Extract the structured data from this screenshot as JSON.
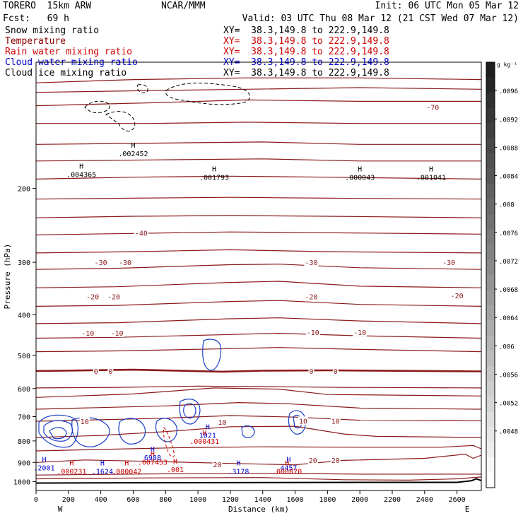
{
  "header": {
    "model": "TORERO  15km ARW",
    "center": "NCAR/MMM",
    "init": "Init: 06 UTC Mon 05 Mar 12",
    "fcst": "Fcst:   69 h",
    "valid": "Valid: 03 UTC Thu 08 Mar 12 (21 CST Wed 07 Mar 12)"
  },
  "legend": [
    {
      "name": "Snow mixing ratio",
      "xy": "XY=  38.3,149.8 to 222.9,149.8",
      "color": "#000000"
    },
    {
      "name": "Temperature",
      "xy": "XY=  38.3,149.8 to 222.9,149.8",
      "color": "#8b0000"
    },
    {
      "name": "Rain water mixing ratio",
      "xy": "XY=  38.3,149.8 to 222.9,149.8",
      "color": "#cc0000"
    },
    {
      "name": "Cloud water mixing ratio",
      "xy": "XY=  38.3,149.8 to 222.9,149.8",
      "color": "#0000cc"
    },
    {
      "name": "Cloud ice mixing ratio",
      "xy": "XY=  38.3,149.8 to 222.9,149.8",
      "color": "#000000"
    }
  ],
  "chart_data": {
    "type": "cross-section",
    "xlabel": "Distance (km)",
    "ylabel": "Pressure (hPa)",
    "xlim": [
      0,
      2750
    ],
    "ylim": [
      1050,
      100
    ],
    "x_ticks": [
      "0",
      "200",
      "400",
      "600",
      "800",
      "1000",
      "1200",
      "1400",
      "1600",
      "1800",
      "2000",
      "2200",
      "2400",
      "2600"
    ],
    "y_ticks": [
      "200",
      "300",
      "400",
      "500",
      "600",
      "700",
      "800",
      "900",
      "1000"
    ],
    "x_end_labels": {
      "left": "W",
      "right": "E"
    },
    "colorbar": {
      "unit": "g kg⁻¹",
      "ticks": [
        "0.0096",
        "0.0092",
        "0.0088",
        "0.0084",
        "0.008",
        "0.0076",
        "0.0072",
        "0.0068",
        "0.0064",
        "0.006",
        "0.0056",
        "0.0052",
        "0.0048"
      ],
      "tick_labels": [
        ".0096",
        ".0092",
        ".0088",
        ".0084",
        ".008",
        ".0076",
        ".0072",
        ".0068",
        ".0064",
        ".006",
        ".0056",
        ".0052",
        ".0048"
      ]
    },
    "temperature_isotherms": [
      {
        "label_value": "-70",
        "labels": [
          {
            "x": 2450,
            "p": 128,
            "text": "-70"
          }
        ]
      },
      {
        "label_value": "-40",
        "labels": [
          {
            "x": 650,
            "p": 255,
            "text": "-40"
          }
        ]
      },
      {
        "label_value": "-30",
        "labels": [
          {
            "x": 400,
            "p": 300,
            "text": "-30"
          },
          {
            "x": 550,
            "p": 300,
            "text": "-30"
          },
          {
            "x": 1700,
            "p": 300,
            "text": "-30"
          },
          {
            "x": 2550,
            "p": 300,
            "text": "-30"
          }
        ]
      },
      {
        "label_value": "-20",
        "labels": [
          {
            "x": 350,
            "p": 362,
            "text": "-20"
          },
          {
            "x": 480,
            "p": 362,
            "text": "-20"
          },
          {
            "x": 1700,
            "p": 362,
            "text": "-20"
          },
          {
            "x": 2600,
            "p": 360,
            "text": "-20"
          }
        ]
      },
      {
        "label_value": "-10",
        "labels": [
          {
            "x": 320,
            "p": 442,
            "text": "-10"
          },
          {
            "x": 500,
            "p": 442,
            "text": "-10"
          },
          {
            "x": 1710,
            "p": 440,
            "text": "-10"
          },
          {
            "x": 2000,
            "p": 440,
            "text": "-10"
          }
        ]
      },
      {
        "label_value": "0",
        "labels": [
          {
            "x": 370,
            "p": 545,
            "text": "0"
          },
          {
            "x": 460,
            "p": 545,
            "text": "0"
          },
          {
            "x": 1700,
            "p": 545,
            "text": "0"
          },
          {
            "x": 1850,
            "p": 545,
            "text": "0"
          }
        ]
      },
      {
        "label_value": "10",
        "labels": [
          {
            "x": 300,
            "p": 718,
            "text": "10"
          },
          {
            "x": 1150,
            "p": 720,
            "text": "10"
          },
          {
            "x": 1650,
            "p": 716,
            "text": "10"
          },
          {
            "x": 1850,
            "p": 716,
            "text": "10"
          }
        ]
      },
      {
        "label_value": "20",
        "labels": [
          {
            "x": 1120,
            "p": 910,
            "text": "20"
          },
          {
            "x": 1710,
            "p": 888,
            "text": "20"
          },
          {
            "x": 1850,
            "p": 888,
            "text": "20"
          }
        ]
      }
    ],
    "maxima_labels": [
      {
        "x": 280,
        "p": 185,
        "text": ".004365",
        "color": "#000000"
      },
      {
        "x": 600,
        "p": 165,
        "text": ".002452",
        "color": "#000000"
      },
      {
        "x": 1100,
        "p": 188,
        "text": ".001793",
        "color": "#000000"
      },
      {
        "x": 2000,
        "p": 188,
        "text": ".000043",
        "color": "#000000"
      },
      {
        "x": 2440,
        "p": 188,
        "text": ".001041",
        "color": "#000000"
      },
      {
        "x": 1060,
        "p": 775,
        "text": "1021",
        "color": "#0000cc"
      },
      {
        "x": 1040,
        "p": 800,
        "text": ".000431",
        "color": "#cc0000"
      },
      {
        "x": 720,
        "p": 875,
        "text": "6988",
        "color": "#0000cc"
      },
      {
        "x": 720,
        "p": 898,
        "text": ".007453",
        "color": "#cc0000"
      },
      {
        "x": 860,
        "p": 935,
        "text": ".001",
        "color": "#cc0000"
      },
      {
        "x": 50,
        "p": 925,
        "text": ".2001",
        "color": "#0000cc"
      },
      {
        "x": 220,
        "p": 943,
        "text": ".000231",
        "color": "#cc0000"
      },
      {
        "x": 410,
        "p": 943,
        "text": ".1624",
        "color": "#0000cc"
      },
      {
        "x": 560,
        "p": 943,
        "text": ".000042",
        "color": "#cc0000"
      },
      {
        "x": 1250,
        "p": 943,
        "text": ".3178",
        "color": "#0000cc"
      },
      {
        "x": 1560,
        "p": 925,
        "text": "4457",
        "color": "#0000cc"
      },
      {
        "x": 1550,
        "p": 943,
        "text": ".000070",
        "color": "#cc0000"
      }
    ]
  }
}
